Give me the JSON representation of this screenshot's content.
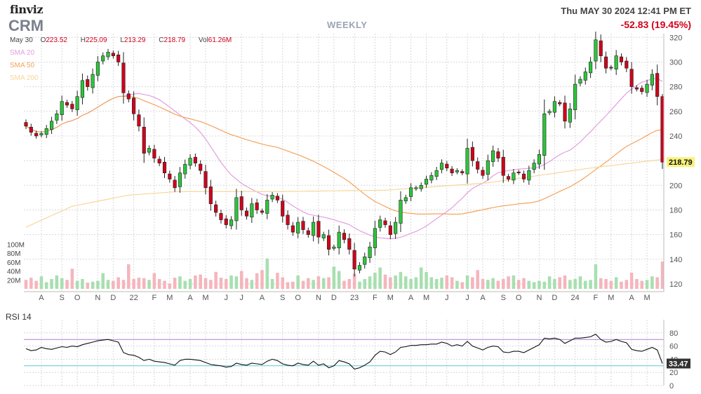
{
  "header": {
    "brand": "finviz",
    "ticker": "CRM",
    "timeframe": "WEEKLY",
    "datetime": "Thu MAY 30 2024 12:41 PM ET",
    "change": "-52.83 (19.45%)",
    "ohlc": {
      "date": "May 30",
      "open_label": "O",
      "open": "223.52",
      "high_label": "H",
      "high": "225.09",
      "low_label": "L",
      "low": "213.29",
      "close_label": "C",
      "close": "218.79",
      "vol_label": "Vol",
      "vol": "61.26M"
    },
    "sma_labels": [
      "SMA 20",
      "SMA 50",
      "SMA 200"
    ]
  },
  "colors": {
    "up": "#2cc53b",
    "down": "#d0021b",
    "up_vol": "#a8dfb0",
    "down_vol": "#f5b5bd",
    "sma20": "#e39ee0",
    "sma50": "#f3a35c",
    "sma200": "#f6d79a",
    "rsi_line": "#111111",
    "rsi_upper": "#b07cd6",
    "rsi_lower": "#5cc8d6",
    "grid": "#d8d8d8",
    "last_price_bg": "#f7f27c"
  },
  "chart_data": {
    "type": "candlestick",
    "title": "CRM",
    "interval": "weekly",
    "x_tick_labels": [
      "A",
      "S",
      "O",
      "N",
      "D",
      "22",
      "F",
      "M",
      "A",
      "M",
      "J",
      "J",
      "A",
      "S",
      "O",
      "N",
      "D",
      "23",
      "F",
      "M",
      "A",
      "M",
      "J",
      "J",
      "A",
      "S",
      "O",
      "N",
      "D",
      "24",
      "F",
      "M",
      "A",
      "M"
    ],
    "y_ticks": [
      120,
      140,
      160,
      180,
      200,
      220,
      240,
      260,
      280,
      300,
      320
    ],
    "ylim": [
      116,
      323
    ],
    "last_price": 218.79,
    "last_price_label": "218.79",
    "closes": [
      248,
      243,
      240,
      242,
      246,
      252,
      258,
      268,
      265,
      262,
      272,
      285,
      280,
      290,
      300,
      305,
      308,
      305,
      300,
      275,
      270,
      258,
      248,
      226,
      230,
      222,
      218,
      210,
      205,
      198,
      210,
      217,
      222,
      218,
      212,
      198,
      185,
      178,
      172,
      168,
      172,
      190,
      180,
      175,
      185,
      180,
      178,
      188,
      192,
      188,
      175,
      168,
      162,
      170,
      164,
      160,
      170,
      158,
      160,
      148,
      150,
      162,
      156,
      148,
      132,
      135,
      142,
      150,
      165,
      172,
      168,
      160,
      170,
      188,
      190,
      198,
      198,
      200,
      205,
      208,
      212,
      218,
      214,
      210,
      212,
      210,
      230,
      220,
      213,
      208,
      220,
      228,
      222,
      208,
      205,
      210,
      210,
      205,
      212,
      218,
      225,
      258,
      260,
      268,
      266,
      252,
      262,
      282,
      286,
      292,
      300,
      318,
      305,
      295,
      295,
      305,
      300,
      295,
      280,
      278,
      276,
      282,
      290,
      272,
      218.79
    ],
    "volumes_m": [
      20,
      25,
      18,
      28,
      15,
      22,
      30,
      24,
      20,
      45,
      18,
      22,
      14,
      16,
      18,
      35,
      20,
      18,
      26,
      20,
      55,
      22,
      25,
      24,
      20,
      35,
      22,
      18,
      12,
      25,
      28,
      18,
      22,
      30,
      32,
      24,
      20,
      38,
      25,
      22,
      30,
      28,
      40,
      24,
      20,
      35,
      42,
      68,
      22,
      36,
      26,
      15,
      16,
      30,
      18,
      24,
      20,
      28,
      24,
      26,
      50,
      40,
      18,
      22,
      34,
      16,
      22,
      28,
      36,
      48,
      32,
      26,
      30,
      38,
      28,
      22,
      26,
      48,
      38,
      26,
      22,
      25,
      30,
      26,
      18,
      15,
      30,
      26,
      42,
      22,
      20,
      24,
      18,
      22,
      28,
      30,
      20,
      24,
      18,
      15,
      18,
      16,
      28,
      22,
      26,
      30,
      20,
      22,
      28,
      18,
      20,
      55,
      24,
      22,
      18,
      26,
      16,
      20,
      36,
      22,
      18,
      20,
      28,
      26,
      61.26
    ],
    "volume_ticks": [
      {
        "value": 20,
        "label": "20M"
      },
      {
        "value": 40,
        "label": "40M"
      },
      {
        "value": 60,
        "label": "60M"
      },
      {
        "value": 80,
        "label": "80M"
      },
      {
        "value": 100,
        "label": "100M"
      }
    ],
    "sma_periods": [
      20,
      50,
      200
    ],
    "sma200_anchor_points": [
      [
        0,
        166
      ],
      [
        9,
        183
      ],
      [
        20,
        192
      ],
      [
        30,
        195
      ],
      [
        50,
        195
      ],
      [
        70,
        196
      ],
      [
        90,
        202
      ],
      [
        100,
        208
      ],
      [
        110,
        214
      ],
      [
        124,
        221
      ]
    ],
    "rsi": {
      "title": "RSI 14",
      "period": 14,
      "ylim": [
        0,
        100
      ],
      "y_ticks": [
        0,
        20,
        40,
        60,
        80
      ],
      "upper": 70,
      "lower": 30,
      "last_label": "33.47",
      "values": [
        56,
        53,
        54,
        58,
        56,
        55,
        57,
        59,
        58,
        60,
        59,
        62,
        64,
        66,
        68,
        69,
        70,
        68,
        66,
        50,
        47,
        46,
        43,
        38,
        40,
        37,
        36,
        35,
        33,
        31,
        38,
        40,
        40,
        39,
        38,
        35,
        32,
        31,
        30,
        28,
        29,
        34,
        32,
        31,
        34,
        33,
        32,
        37,
        40,
        38,
        33,
        31,
        30,
        34,
        32,
        31,
        37,
        31,
        33,
        27,
        30,
        38,
        36,
        33,
        25,
        27,
        31,
        36,
        46,
        52,
        51,
        47,
        51,
        58,
        59,
        61,
        61,
        62,
        62,
        63,
        63,
        66,
        64,
        60,
        62,
        60,
        67,
        60,
        57,
        54,
        58,
        60,
        59,
        51,
        50,
        52,
        52,
        50,
        54,
        58,
        62,
        72,
        71,
        72,
        70,
        64,
        68,
        72,
        72,
        73,
        74,
        78,
        70,
        66,
        67,
        70,
        67,
        65,
        55,
        53,
        52,
        55,
        58,
        54,
        33.47
      ]
    }
  }
}
